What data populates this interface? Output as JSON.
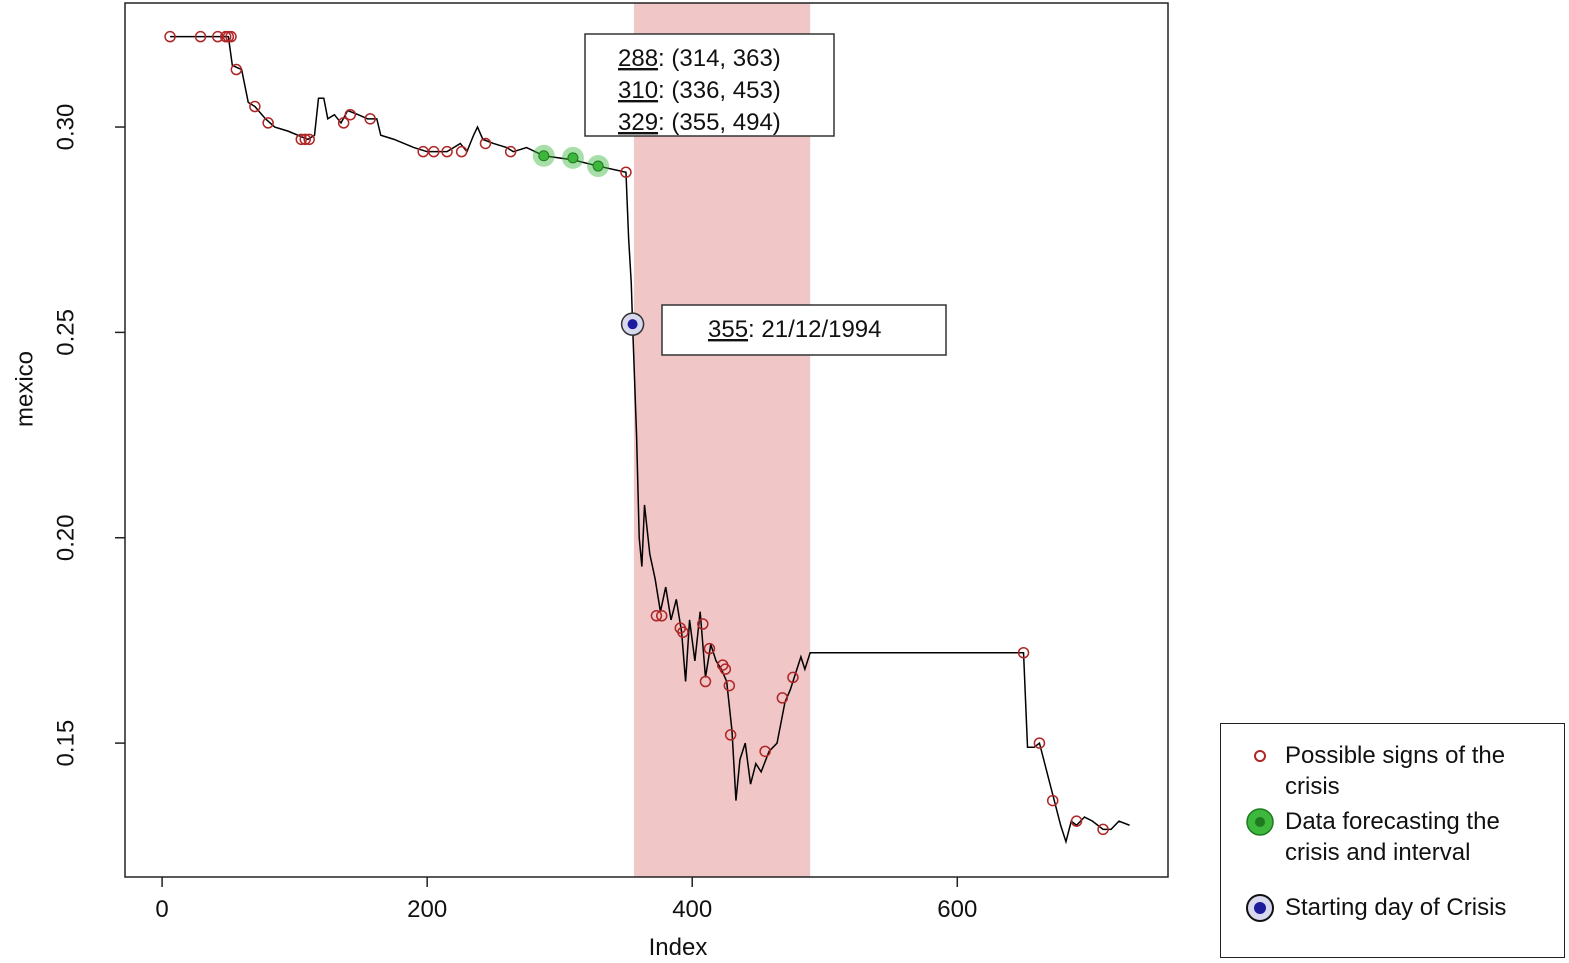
{
  "chart_data": {
    "type": "line",
    "x_label": "Index",
    "y_label": "mexico",
    "xlim": [
      -28,
      759
    ],
    "ylim": [
      0.1174,
      0.3302
    ],
    "xticks": [
      0,
      200,
      400,
      600
    ],
    "yticks": [
      0.15,
      {
        "value": 0.2,
        "label": "0.20"
      },
      0.25,
      {
        "value": 0.3,
        "label": "0.30"
      }
    ],
    "shaded_interval": [
      356,
      489
    ],
    "shade_color": "#f0c6c6",
    "series": [
      {
        "type": "line",
        "color": "#000000",
        "x": [
          6,
          50,
          53,
          60,
          65,
          70,
          78,
          85,
          95,
          110,
          115,
          118,
          122,
          125,
          130,
          135,
          140,
          148,
          155,
          162,
          165,
          175,
          190,
          200,
          215,
          225,
          230,
          235,
          238,
          242,
          250,
          260,
          265,
          275,
          288,
          310,
          329,
          350,
          352,
          354,
          355,
          358,
          360,
          362,
          364,
          368,
          372,
          376,
          380,
          384,
          388,
          392,
          395,
          398,
          402,
          406,
          410,
          414,
          418,
          422,
          426,
          430,
          433,
          436,
          440,
          444,
          448,
          452,
          458,
          464,
          470,
          474,
          478,
          482,
          485,
          489,
          650,
          653,
          658,
          662,
          666,
          670,
          674,
          678,
          682,
          686,
          690,
          696,
          702,
          710,
          716,
          722,
          730
        ],
        "values": [
          0.322,
          0.322,
          0.315,
          0.314,
          0.306,
          0.305,
          0.302,
          0.3,
          0.299,
          0.297,
          0.298,
          0.307,
          0.307,
          0.302,
          0.303,
          0.301,
          0.304,
          0.303,
          0.302,
          0.302,
          0.298,
          0.297,
          0.295,
          0.294,
          0.294,
          0.296,
          0.294,
          0.298,
          0.3,
          0.297,
          0.296,
          0.295,
          0.294,
          0.295,
          0.293,
          0.292,
          0.2905,
          0.289,
          0.273,
          0.262,
          0.252,
          0.225,
          0.2,
          0.193,
          0.208,
          0.196,
          0.19,
          0.182,
          0.188,
          0.18,
          0.185,
          0.177,
          0.165,
          0.18,
          0.17,
          0.182,
          0.166,
          0.174,
          0.17,
          0.168,
          0.165,
          0.153,
          0.136,
          0.146,
          0.15,
          0.14,
          0.145,
          0.143,
          0.148,
          0.15,
          0.16,
          0.163,
          0.167,
          0.171,
          0.168,
          0.172,
          0.172,
          0.149,
          0.149,
          0.15,
          0.145,
          0.14,
          0.135,
          0.13,
          0.126,
          0.131,
          0.13,
          0.132,
          0.131,
          0.129,
          0.129,
          0.131,
          0.13
        ]
      },
      {
        "type": "scatter",
        "name": "Possible signs of the crisis",
        "color": "#b02525",
        "x": [
          6,
          29,
          42,
          48,
          50,
          52,
          56,
          70,
          80,
          105,
          108,
          111,
          137,
          142,
          157,
          197,
          205,
          215,
          226,
          244,
          263,
          350,
          373,
          377,
          391,
          393,
          408,
          410,
          413,
          423,
          425,
          428,
          429,
          455,
          468,
          476,
          650,
          662,
          672,
          690,
          710
        ],
        "values": [
          0.322,
          0.322,
          0.322,
          0.322,
          0.322,
          0.322,
          0.314,
          0.305,
          0.301,
          0.297,
          0.297,
          0.297,
          0.301,
          0.303,
          0.302,
          0.294,
          0.294,
          0.294,
          0.294,
          0.296,
          0.294,
          0.289,
          0.181,
          0.181,
          0.178,
          0.177,
          0.179,
          0.165,
          0.173,
          0.169,
          0.168,
          0.164,
          0.152,
          0.148,
          0.161,
          0.166,
          0.172,
          0.15,
          0.136,
          0.131,
          0.129
        ]
      },
      {
        "type": "scatter",
        "name": "Data forecasting the crisis and interval",
        "color": "#3db83d",
        "x": [
          288,
          310,
          329
        ],
        "values": [
          0.293,
          0.2925,
          0.2905
        ]
      },
      {
        "type": "scatter",
        "name": "Starting day of Crisis",
        "color": "#1c1c9c",
        "x": [
          355
        ],
        "values": [
          0.252
        ]
      }
    ],
    "annotations": [
      {
        "key": "288",
        "text": ": (314, 363)"
      },
      {
        "key": "310",
        "text": ": (336, 453)"
      },
      {
        "key": "329",
        "text": ": (355, 494)"
      }
    ],
    "start_annotation": {
      "key": "355",
      "text": ": 21/12/1994"
    }
  }
}
